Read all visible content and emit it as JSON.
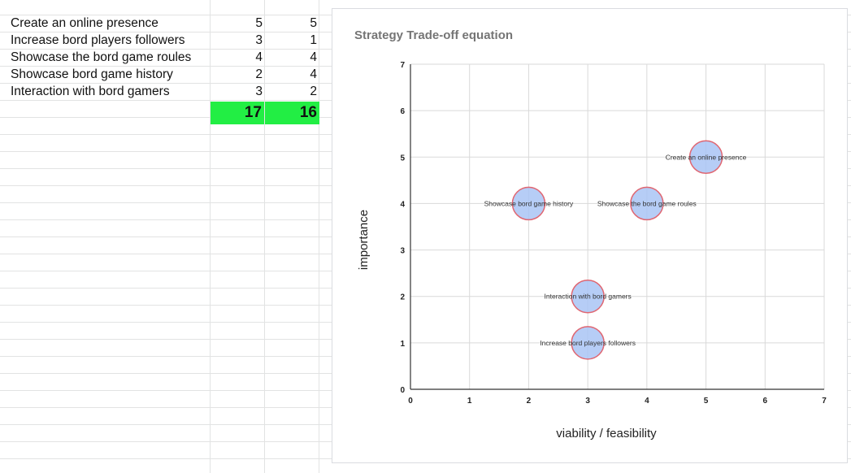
{
  "sheet": {
    "rows": [
      {
        "label": "Create an online presence",
        "a": "5",
        "b": "5"
      },
      {
        "label": "Increase bord players followers",
        "a": "3",
        "b": "1"
      },
      {
        "label": "Showcase the bord game roules",
        "a": "4",
        "b": "4"
      },
      {
        "label": "Showcase bord game history",
        "a": "2",
        "b": "4"
      },
      {
        "label": "Interaction with bord gamers",
        "a": "3",
        "b": "2"
      }
    ],
    "totals": {
      "a": "17",
      "b": "16"
    },
    "total_color": "#22ee44"
  },
  "chart_data": {
    "type": "scatter",
    "title": "Strategy Trade-off equation",
    "xlabel": "viability / feasibility",
    "ylabel": "importance",
    "xlim": [
      0,
      7
    ],
    "ylim": [
      0,
      7
    ],
    "xticks": [
      "0",
      "1",
      "2",
      "3",
      "4",
      "5",
      "6",
      "7"
    ],
    "yticks": [
      "0",
      "1",
      "2",
      "3",
      "4",
      "5",
      "6",
      "7"
    ],
    "grid": true,
    "bubble_fill": "#a9c4f5",
    "bubble_stroke": "#e06671",
    "points": [
      {
        "label": "Create an online presence",
        "x": 5,
        "y": 5
      },
      {
        "label": "Increase bord players followers",
        "x": 3,
        "y": 1
      },
      {
        "label": "Showcase the bord game roules",
        "x": 4,
        "y": 4
      },
      {
        "label": "Showcase bord game history",
        "x": 2,
        "y": 4
      },
      {
        "label": "Interaction with bord gamers",
        "x": 3,
        "y": 2
      }
    ]
  }
}
